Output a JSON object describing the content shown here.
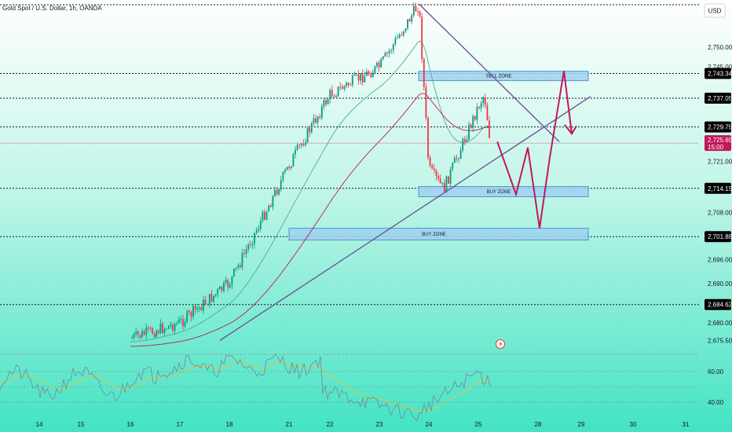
{
  "title": "Gold Spot / U.S. Dollar, 1h, OANDA",
  "currency_button": "USD",
  "colors": {
    "up": "#089981",
    "down": "#f23645",
    "ema_fast": "#4caf91",
    "ema_slow": "#c2185b",
    "trendline": "#6a4c93",
    "projection": "#c2185b",
    "zone_fill": "#9fd1f0",
    "zone_border": "#3b82c4",
    "level_tag": "#000000",
    "price_tag": "#c2185b",
    "rsi_line": "#7b8596",
    "rsi_signal": "#f1c232",
    "bg_top": "#ffffff",
    "bg_bottom": "#43e3c4"
  },
  "chart_data": {
    "type": "candlestick",
    "title": "Gold Spot / U.S. Dollar, 1h, OANDA",
    "ylim": [
      2672,
      2762
    ],
    "y_ticks": [
      "2,750.000",
      "2,745.000",
      "2,721.000",
      "2,708.000",
      "2,696.000",
      "2,690.000",
      "2,680.000",
      "2,675.500"
    ],
    "y_tick_values": [
      2750.0,
      2745.0,
      2721.0,
      2708.0,
      2696.0,
      2690.0,
      2680.0,
      2675.5
    ],
    "x_ticks": [
      "14",
      "15",
      "16",
      "17",
      "18",
      "21",
      "22",
      "23",
      "24",
      "25",
      "28",
      "29",
      "30",
      "31"
    ],
    "current_price": {
      "value": "2,725.650",
      "countdown": "15:00"
    },
    "levels": [
      {
        "label": "2,743.340",
        "value": 2743.34
      },
      {
        "label": "2,737.059",
        "value": 2737.059
      },
      {
        "label": "2,729.750",
        "value": 2729.75
      },
      {
        "label": "2,714.152",
        "value": 2714.152
      },
      {
        "label": "2,701.886",
        "value": 2701.886
      },
      {
        "label": "2,684.624",
        "value": 2684.624
      }
    ],
    "zones": [
      {
        "label": "SELL ZONE",
        "from": 2741.5,
        "to": 2743.9,
        "start": "24",
        "end": "29"
      },
      {
        "label": "BUY ZONE",
        "from": 2712.0,
        "to": 2714.6,
        "start": "24",
        "end": "29"
      },
      {
        "label": "BUY ZONE",
        "from": 2701.0,
        "to": 2704.0,
        "start": "21",
        "end": "29"
      }
    ],
    "price_key_points": [
      {
        "date": "16",
        "price": 2676
      },
      {
        "date": "17",
        "price": 2680
      },
      {
        "date": "18",
        "price": 2690
      },
      {
        "date": "21",
        "price": 2720
      },
      {
        "date": "22",
        "price": 2738
      },
      {
        "date": "23",
        "price": 2745
      },
      {
        "date": "23.8",
        "price": 2761
      },
      {
        "date": "24",
        "price": 2719
      },
      {
        "date": "24.3",
        "price": 2714
      },
      {
        "date": "25",
        "price": 2735
      },
      {
        "date": "25.3",
        "price": 2738
      },
      {
        "date": "25.6",
        "price": 2726
      }
    ],
    "rsi": {
      "ticks": [
        "60.00",
        "40.00"
      ],
      "tick_values": [
        60,
        40
      ]
    }
  }
}
